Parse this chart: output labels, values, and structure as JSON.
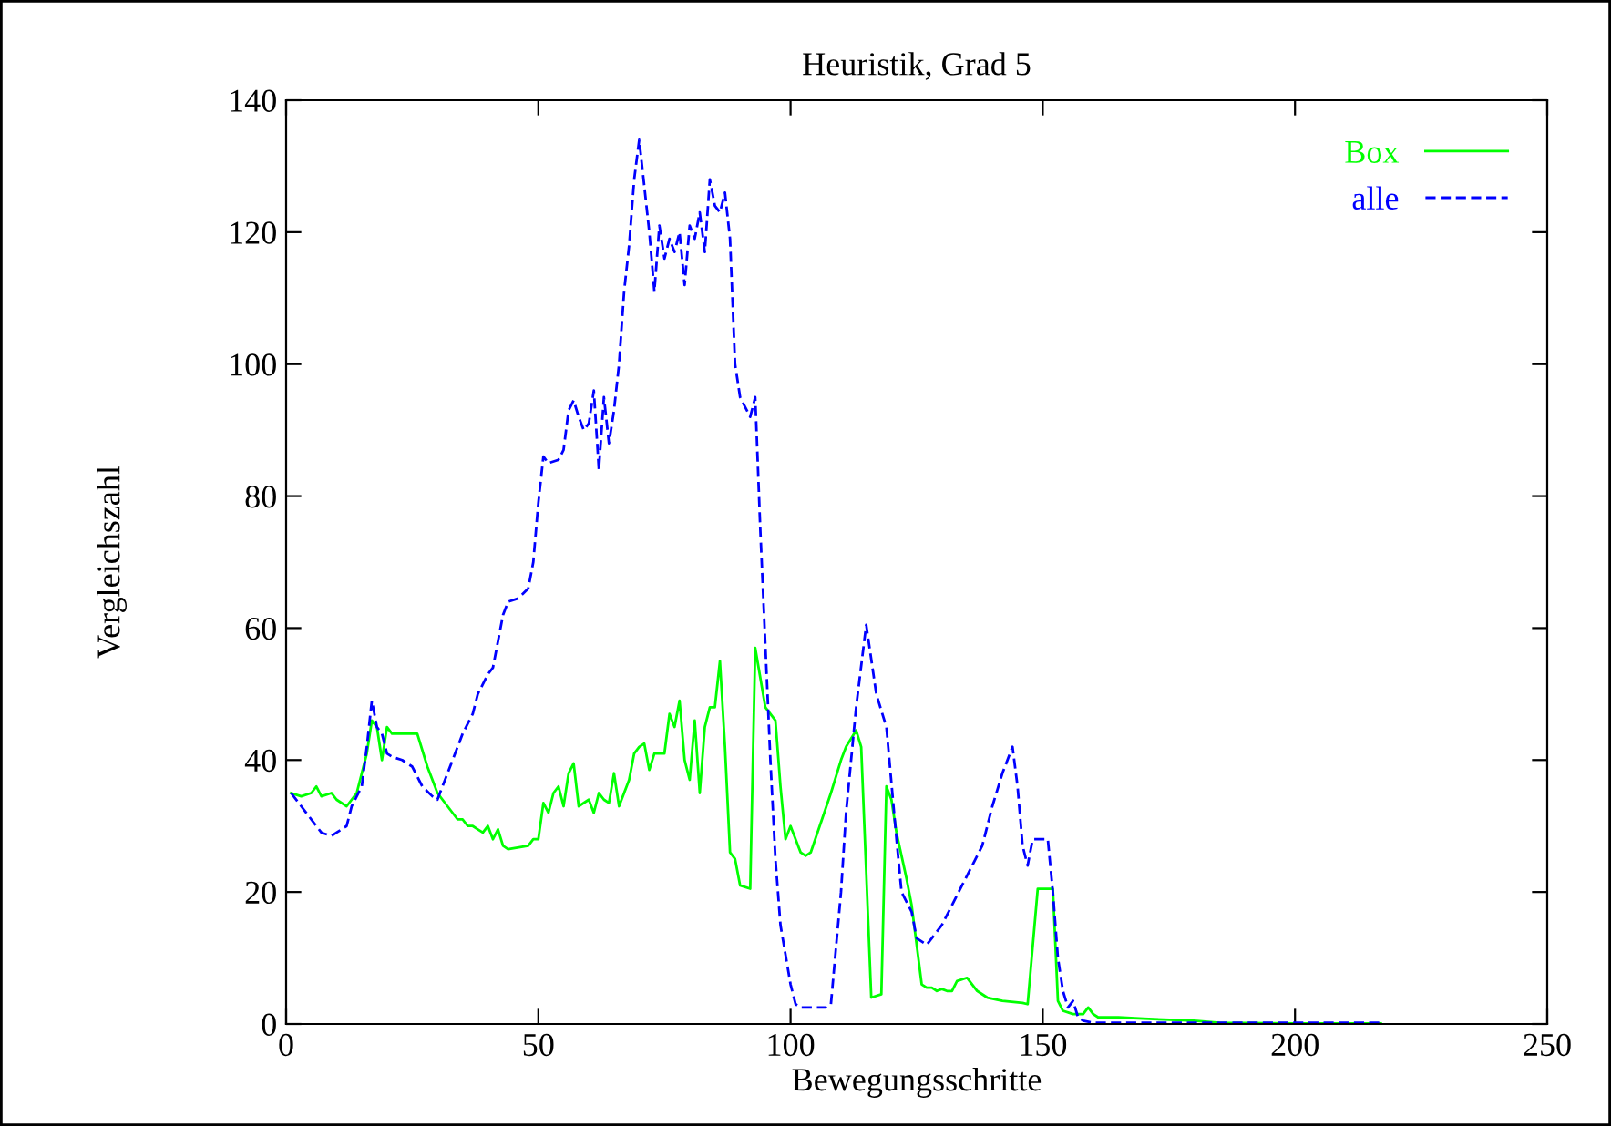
{
  "chart_data": {
    "type": "line",
    "title": "Heuristik, Grad 5",
    "xlabel": "Bewegungsschritte",
    "ylabel": "Vergleichszahl",
    "xlim": [
      0,
      250
    ],
    "ylim": [
      0,
      140
    ],
    "xticks": [
      0,
      50,
      100,
      150,
      200,
      250
    ],
    "yticks": [
      0,
      20,
      40,
      60,
      80,
      100,
      120,
      140
    ],
    "grid": false,
    "legend": "top right",
    "marker": "none",
    "series": [
      {
        "name": "Box",
        "color": "#00ff00",
        "line_style": "solid",
        "x": [
          1,
          3,
          5,
          6,
          7,
          9,
          10,
          12,
          14,
          15,
          16,
          17,
          18,
          19,
          20,
          21,
          22,
          25,
          26,
          28,
          30,
          32,
          34,
          35,
          36,
          37,
          38,
          39,
          40,
          41,
          42,
          43,
          44,
          48,
          49,
          50,
          51,
          52,
          53,
          54,
          55,
          56,
          57,
          58,
          60,
          61,
          62,
          63,
          64,
          65,
          66,
          67,
          68,
          69,
          70,
          71,
          72,
          73,
          75,
          76,
          77,
          78,
          79,
          80,
          81,
          82,
          83,
          84,
          85,
          86,
          87,
          88,
          89,
          90,
          92,
          93,
          95,
          96,
          97,
          98,
          99,
          100,
          101,
          102,
          103,
          104,
          108,
          110,
          111,
          113,
          114,
          116,
          118,
          119,
          120,
          121,
          123,
          124,
          126,
          127,
          128,
          129,
          130,
          131,
          132,
          133,
          135,
          136,
          137,
          139,
          142,
          146,
          147,
          149,
          152,
          153,
          154,
          156,
          158,
          159,
          160,
          161,
          165,
          170,
          180,
          185,
          200,
          217
        ],
        "values": [
          35,
          34.5,
          35,
          36,
          34.5,
          35,
          34,
          33,
          35,
          38,
          41,
          46,
          45,
          40,
          45,
          44,
          44,
          44,
          44,
          39,
          35,
          33,
          31,
          31,
          30,
          30,
          29.5,
          29,
          30,
          28,
          29.5,
          27,
          26.5,
          27,
          28,
          28,
          33.5,
          32,
          35,
          36,
          33,
          38,
          39.5,
          33,
          34,
          32,
          35,
          34,
          33.5,
          38,
          33,
          35,
          37,
          41,
          42,
          42.5,
          38.5,
          41,
          41,
          47,
          45,
          49,
          40,
          37,
          46,
          35,
          45,
          48,
          48,
          55,
          42,
          26,
          25,
          21,
          20.5,
          57,
          48,
          47,
          46,
          36,
          28,
          30,
          28,
          26,
          25.5,
          26,
          35,
          40,
          42,
          44.5,
          42,
          4,
          4.5,
          36,
          34,
          29,
          22,
          18,
          6,
          5.5,
          5.5,
          5,
          5.3,
          5,
          5,
          6.5,
          7,
          6,
          5,
          4,
          3.5,
          3.2,
          3,
          20.5,
          20.5,
          3.5,
          2,
          1.5,
          1.5,
          2.5,
          1.5,
          1,
          1,
          0.8,
          0.5,
          0.2,
          0.1,
          0.1
        ]
      },
      {
        "name": "alle",
        "color": "#0000ff",
        "line_style": "dashed",
        "x": [
          1,
          3,
          5,
          6,
          7,
          9,
          10,
          12,
          13,
          15,
          16,
          17,
          18,
          19,
          20,
          21,
          23,
          25,
          27,
          29,
          30,
          31,
          33,
          35,
          37,
          38,
          40,
          41,
          42,
          43,
          44,
          46,
          48,
          49,
          50,
          51,
          52,
          54,
          55,
          56,
          57,
          58,
          59,
          60,
          61,
          62,
          63,
          64,
          65,
          66,
          67,
          68,
          69,
          70,
          71,
          72,
          73,
          74,
          75,
          76,
          77,
          78,
          79,
          80,
          81,
          82,
          83,
          84,
          85,
          86,
          87,
          88,
          89,
          90,
          92,
          93,
          94,
          96,
          97,
          98,
          100,
          101,
          102,
          107,
          108,
          110,
          111,
          113,
          115,
          117,
          119,
          121,
          122,
          124,
          125,
          127,
          128,
          130,
          132,
          134,
          136,
          138,
          140,
          142,
          143,
          144,
          145,
          146,
          147,
          148,
          151,
          152,
          153,
          154,
          155,
          156,
          157,
          158,
          160,
          217
        ],
        "values": [
          35,
          33,
          31,
          30,
          29,
          28.5,
          29,
          30,
          33,
          36,
          42,
          49,
          45,
          44,
          41,
          40.5,
          40,
          39,
          36,
          34.5,
          34,
          36,
          40,
          44,
          47,
          50,
          53,
          54,
          58,
          62,
          64,
          64.5,
          66,
          70,
          79,
          86,
          85,
          85.5,
          87,
          93,
          94.5,
          92,
          90,
          91,
          96,
          84,
          95,
          88,
          93,
          100,
          111,
          118,
          128,
          134,
          127,
          120,
          111,
          121,
          116,
          119,
          117,
          120,
          112,
          121,
          119,
          123,
          117,
          128,
          124,
          123,
          126,
          119,
          100,
          95,
          92,
          95,
          75,
          40,
          25,
          15,
          6,
          3,
          2.5,
          2.5,
          3,
          20,
          32,
          48,
          60.5,
          50,
          45,
          28,
          20,
          17,
          13,
          12,
          13,
          15,
          18,
          21,
          24,
          27,
          33,
          38,
          40,
          42,
          36,
          27,
          24,
          28,
          28,
          20,
          10,
          5,
          2.5,
          3.5,
          1,
          0.5,
          0.2,
          0.2
        ]
      }
    ]
  }
}
